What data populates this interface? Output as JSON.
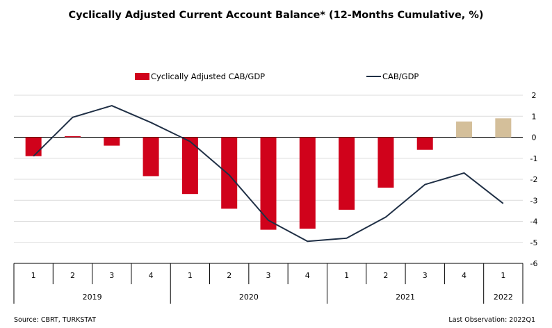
{
  "chart_data": {
    "type": "bar",
    "title": "Cyclically Adjusted Current Account Balance* (12-Months Cumulative, %)",
    "categories": [
      "1",
      "2",
      "3",
      "4",
      "1",
      "2",
      "3",
      "4",
      "1",
      "2",
      "3",
      "4",
      "1"
    ],
    "years": [
      {
        "label": "2019",
        "start": 0,
        "end": 3
      },
      {
        "label": "2020",
        "start": 4,
        "end": 7
      },
      {
        "label": "2021",
        "start": 8,
        "end": 11
      },
      {
        "label": "2022",
        "start": 12,
        "end": 12
      }
    ],
    "series": [
      {
        "name": "Cyclically Adjusted CAB/GDP",
        "kind": "bar",
        "values": [
          -0.9,
          0.05,
          -0.4,
          -1.85,
          -2.7,
          -3.4,
          -4.4,
          -4.35,
          -3.45,
          -2.4,
          -0.6,
          0.75,
          0.9
        ],
        "highlight_from_index": 11
      },
      {
        "name": "CAB/GDP",
        "kind": "line",
        "values": [
          -0.9,
          0.95,
          1.5,
          0.7,
          -0.2,
          -1.8,
          -3.95,
          -4.95,
          -4.8,
          -3.8,
          -2.25,
          -1.7,
          -3.15
        ]
      }
    ],
    "y_ticks": [
      2,
      1,
      0,
      -1,
      -2,
      -3,
      -4,
      -5,
      -6
    ],
    "ylim": [
      -6,
      2
    ],
    "y_axis_side": "right",
    "grid": "horizontal",
    "legend_position": "top-center",
    "colors": {
      "bar": "#d0021b",
      "bar_highlight": "#d4bf9a",
      "line": "#1f2f45",
      "grid": "#dcdcdc",
      "axis": "#000000"
    }
  },
  "footer": {
    "source": "Source: CBRT, TURKSTAT",
    "last_observation": "Last Observation: 2022Q1"
  }
}
